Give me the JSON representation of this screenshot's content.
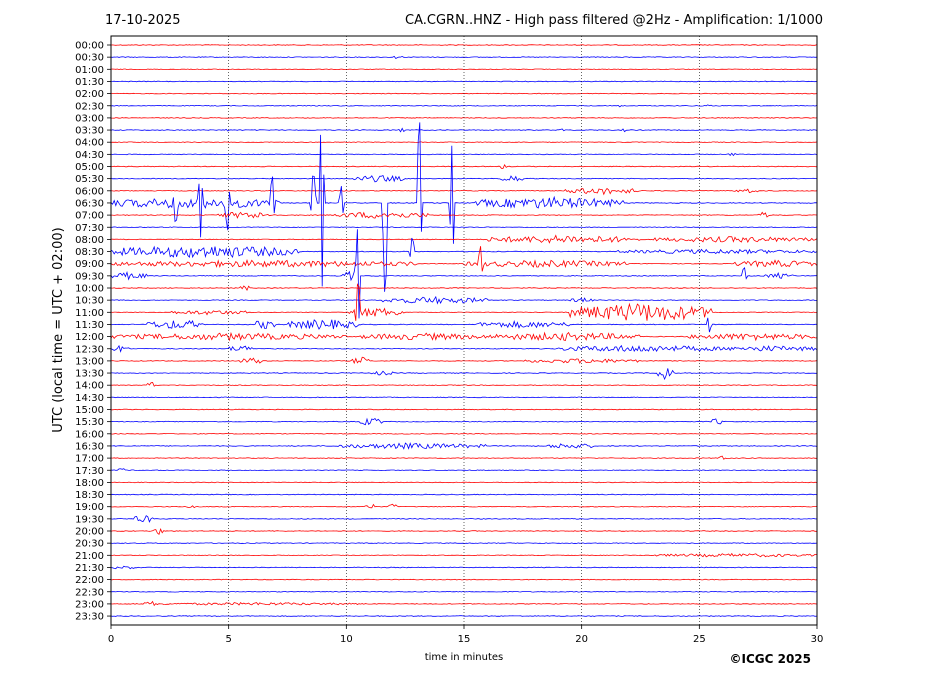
{
  "header": {
    "date": "17-10-2025",
    "title": "CA.CGRN..HNZ - High pass filtered @2Hz - Amplification: 1/1000"
  },
  "footer": {
    "credit": "©ICGC 2025"
  },
  "chart_data": {
    "type": "line",
    "title": "CA.CGRN..HNZ - High pass filtered @2Hz - Amplification: 1/1000",
    "xlabel": "time in minutes",
    "ylabel": "UTC (local time = UTC + 02:00)",
    "xlim": [
      0,
      30
    ],
    "x_ticks": [
      0,
      5,
      10,
      15,
      20,
      25,
      30
    ],
    "grid": "vertical dotted lines at x ticks",
    "row_labels": [
      "00:00",
      "00:30",
      "01:00",
      "01:30",
      "02:00",
      "02:30",
      "03:00",
      "03:30",
      "04:00",
      "04:30",
      "05:00",
      "05:30",
      "06:00",
      "06:30",
      "07:00",
      "07:30",
      "08:00",
      "08:30",
      "09:00",
      "09:30",
      "10:00",
      "10:30",
      "11:00",
      "11:30",
      "12:00",
      "12:30",
      "13:00",
      "13:30",
      "14:00",
      "14:30",
      "15:00",
      "15:30",
      "16:00",
      "16:30",
      "17:00",
      "17:30",
      "18:00",
      "18:30",
      "19:00",
      "19:30",
      "20:00",
      "20:30",
      "21:00",
      "21:30",
      "22:00",
      "22:30",
      "23:00",
      "23:30"
    ],
    "trace_colors": [
      "#ff0000",
      "#0000ff"
    ],
    "events": [
      {
        "row": "00:30",
        "x": [
          12,
          12.4
        ],
        "amp": 0.3
      },
      {
        "row": "02:30",
        "x": [
          21.5,
          21.8
        ],
        "amp": 0.3
      },
      {
        "row": "02:30",
        "x": [
          25.3,
          25.6
        ],
        "amp": 0.3
      },
      {
        "row": "03:30",
        "x": [
          4.8,
          5.2
        ],
        "amp": 0.2
      },
      {
        "row": "03:30",
        "x": [
          12.2,
          12.5
        ],
        "amp": 0.4
      },
      {
        "row": "03:30",
        "x": [
          19.0,
          19.3
        ],
        "amp": 0.3
      },
      {
        "row": "03:30",
        "x": [
          21.7,
          22.0
        ],
        "amp": 0.3
      },
      {
        "row": "04:30",
        "x": [
          26.2,
          26.6
        ],
        "amp": 0.3
      },
      {
        "row": "05:00",
        "x": [
          16.5,
          16.8
        ],
        "amp": 0.4
      },
      {
        "row": "05:30",
        "x": [
          10.3,
          12.5
        ],
        "amp": 0.6
      },
      {
        "row": "05:30",
        "x": [
          16.5,
          17.5
        ],
        "amp": 0.6
      },
      {
        "row": "06:00",
        "x": [
          19.3,
          22.5
        ],
        "amp": 0.6
      },
      {
        "row": "06:00",
        "x": [
          26.5,
          27.5
        ],
        "amp": 0.4
      },
      {
        "row": "06:30",
        "x": [
          0.0,
          7.2
        ],
        "amp": 1.0
      },
      {
        "row": "06:30",
        "x": [
          15.5,
          21.8
        ],
        "amp": 1.0
      },
      {
        "row": "07:00",
        "x": [
          4.5,
          7.0
        ],
        "amp": 0.6
      },
      {
        "row": "07:00",
        "x": [
          9.5,
          13.5
        ],
        "amp": 0.6
      },
      {
        "row": "07:00",
        "x": [
          27.5,
          28.0
        ],
        "amp": 0.6
      },
      {
        "row": "08:00",
        "x": [
          16.0,
          22.5
        ],
        "amp": 0.7
      },
      {
        "row": "08:00",
        "x": [
          23.0,
          30.0
        ],
        "amp": 0.5
      },
      {
        "row": "08:30",
        "x": [
          0.0,
          8.0
        ],
        "amp": 1.1
      },
      {
        "row": "08:30",
        "x": [
          21.5,
          30.0
        ],
        "amp": 0.4
      },
      {
        "row": "09:00",
        "x": [
          0.0,
          13.0
        ],
        "amp": 0.6
      },
      {
        "row": "09:00",
        "x": [
          15.0,
          22.0
        ],
        "amp": 0.6
      },
      {
        "row": "09:00",
        "x": [
          26.5,
          30.0
        ],
        "amp": 0.6
      },
      {
        "row": "09:30",
        "x": [
          0.0,
          1.5
        ],
        "amp": 0.6
      },
      {
        "row": "09:30",
        "x": [
          9.8,
          10.6
        ],
        "amp": 0.8
      },
      {
        "row": "09:30",
        "x": [
          27.8,
          29.0
        ],
        "amp": 0.5
      },
      {
        "row": "10:00",
        "x": [
          5.5,
          5.9
        ],
        "amp": 0.5
      },
      {
        "row": "10:30",
        "x": [
          11.5,
          16.0
        ],
        "amp": 0.6
      },
      {
        "row": "10:30",
        "x": [
          19.5,
          20.5
        ],
        "amp": 0.4
      },
      {
        "row": "11:00",
        "x": [
          2.5,
          6.0
        ],
        "amp": 0.4
      },
      {
        "row": "11:00",
        "x": [
          10.0,
          12.5
        ],
        "amp": 0.8
      },
      {
        "row": "11:00",
        "x": [
          19.5,
          25.5
        ],
        "amp": 1.6
      },
      {
        "row": "11:30",
        "x": [
          1.5,
          4.0
        ],
        "amp": 0.8
      },
      {
        "row": "11:30",
        "x": [
          6.0,
          7.0
        ],
        "amp": 0.8
      },
      {
        "row": "11:30",
        "x": [
          7.5,
          10.5
        ],
        "amp": 0.9
      },
      {
        "row": "11:30",
        "x": [
          15.5,
          19.5
        ],
        "amp": 0.6
      },
      {
        "row": "12:00",
        "x": [
          0.0,
          10.0
        ],
        "amp": 0.6
      },
      {
        "row": "12:00",
        "x": [
          10.5,
          16.0
        ],
        "amp": 0.6
      },
      {
        "row": "12:00",
        "x": [
          16.0,
          22.5
        ],
        "amp": 0.7
      },
      {
        "row": "12:00",
        "x": [
          24.5,
          30.0
        ],
        "amp": 0.6
      },
      {
        "row": "12:30",
        "x": [
          0.0,
          0.8
        ],
        "amp": 0.6
      },
      {
        "row": "12:30",
        "x": [
          5.0,
          6.0
        ],
        "amp": 0.6
      },
      {
        "row": "12:30",
        "x": [
          19.0,
          26.0
        ],
        "amp": 0.6
      },
      {
        "row": "12:30",
        "x": [
          26.0,
          30.0
        ],
        "amp": 0.5
      },
      {
        "row": "13:00",
        "x": [
          5.5,
          6.5
        ],
        "amp": 0.6
      },
      {
        "row": "13:00",
        "x": [
          10.2,
          11.0
        ],
        "amp": 0.7
      },
      {
        "row": "13:00",
        "x": [
          17.5,
          22.5
        ],
        "amp": 0.4
      },
      {
        "row": "13:30",
        "x": [
          11.0,
          12.0
        ],
        "amp": 0.4
      },
      {
        "row": "13:30",
        "x": [
          23.2,
          23.9
        ],
        "amp": 1.6
      },
      {
        "row": "14:00",
        "x": [
          1.5,
          1.9
        ],
        "amp": 0.7
      },
      {
        "row": "15:30",
        "x": [
          10.6,
          11.5
        ],
        "amp": 0.7
      },
      {
        "row": "15:30",
        "x": [
          25.5,
          26.0
        ],
        "amp": 0.6
      },
      {
        "row": "16:30",
        "x": [
          9.5,
          16.0
        ],
        "amp": 0.5
      },
      {
        "row": "16:30",
        "x": [
          18.5,
          20.5
        ],
        "amp": 0.5
      },
      {
        "row": "17:00",
        "x": [
          25.8,
          26.2
        ],
        "amp": 0.5
      },
      {
        "row": "17:30",
        "x": [
          0.3,
          0.7
        ],
        "amp": 0.4
      },
      {
        "row": "19:00",
        "x": [
          3.2,
          3.6
        ],
        "amp": 0.5
      },
      {
        "row": "19:00",
        "x": [
          10.8,
          11.2
        ],
        "amp": 0.6
      },
      {
        "row": "19:00",
        "x": [
          11.8,
          12.2
        ],
        "amp": 0.5
      },
      {
        "row": "19:30",
        "x": [
          1.0,
          1.8
        ],
        "amp": 0.7
      },
      {
        "row": "20:00",
        "x": [
          1.8,
          2.3
        ],
        "amp": 0.6
      },
      {
        "row": "21:00",
        "x": [
          23.0,
          30.0
        ],
        "amp": 0.3
      },
      {
        "row": "21:30",
        "x": [
          0.0,
          1.0
        ],
        "amp": 0.3
      },
      {
        "row": "23:00",
        "x": [
          1.4,
          2.0
        ],
        "amp": 0.5
      },
      {
        "row": "23:00",
        "x": [
          2.0,
          10.5
        ],
        "amp": 0.25
      }
    ],
    "spikes": [
      {
        "row": "06:30",
        "x": 8.95,
        "amp": 8.5
      },
      {
        "row": "06:30",
        "x": 11.65,
        "amp": 9.0
      },
      {
        "row": "06:30",
        "x": 13.1,
        "amp": 8.0
      },
      {
        "row": "06:30",
        "x": 14.5,
        "amp": 5.5
      },
      {
        "row": "06:30",
        "x": 2.75,
        "amp": 2.0
      },
      {
        "row": "06:30",
        "x": 3.8,
        "amp": 3.0
      },
      {
        "row": "06:30",
        "x": 4.95,
        "amp": 2.5
      },
      {
        "row": "06:30",
        "x": 6.85,
        "amp": 2.5
      },
      {
        "row": "06:30",
        "x": 8.6,
        "amp": 3.0
      },
      {
        "row": "06:30",
        "x": 9.8,
        "amp": 1.5
      },
      {
        "row": "09:30",
        "x": 10.5,
        "amp": 5.0
      },
      {
        "row": "11:00",
        "x": 10.5,
        "amp": 3.0
      },
      {
        "row": "09:00",
        "x": 15.7,
        "amp": 1.5
      },
      {
        "row": "08:30",
        "x": 12.8,
        "amp": 1.3
      },
      {
        "row": "09:30",
        "x": 26.9,
        "amp": 0.8
      },
      {
        "row": "11:30",
        "x": 25.4,
        "amp": 0.8
      }
    ]
  }
}
